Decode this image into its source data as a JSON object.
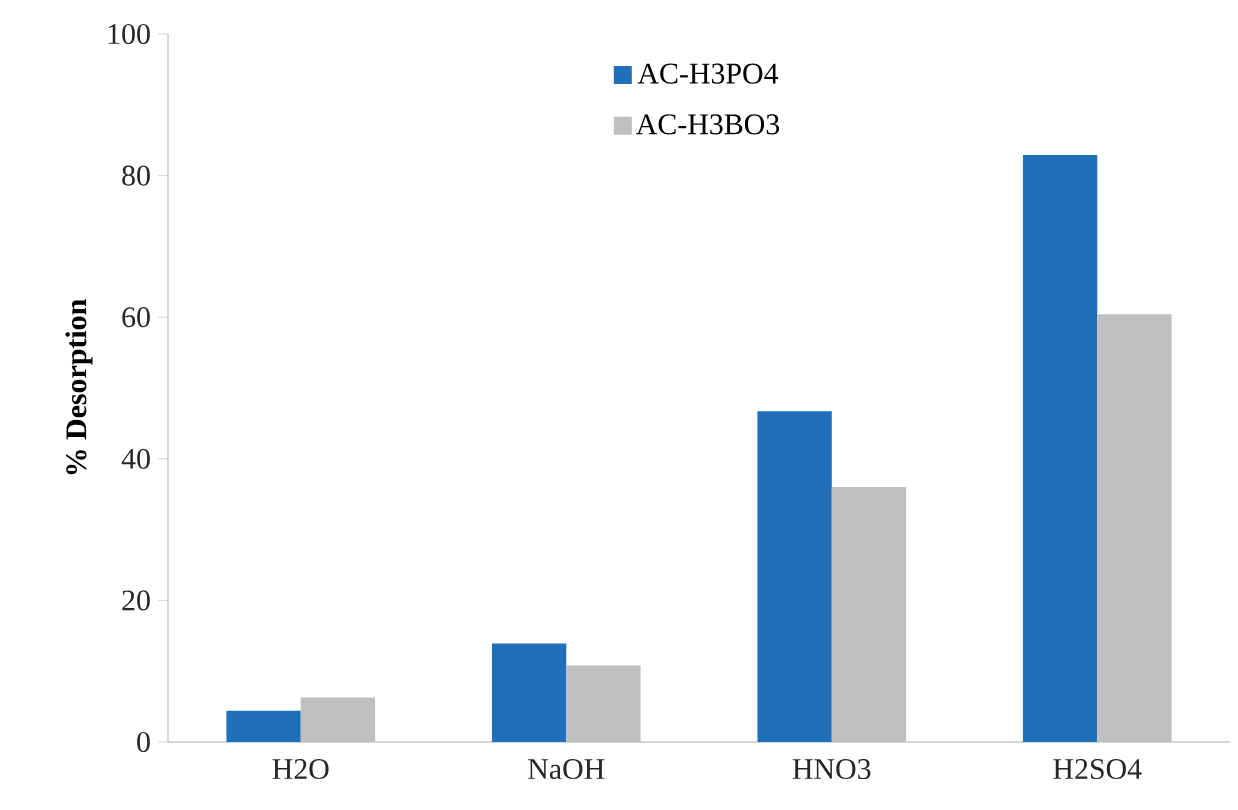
{
  "chart_data": {
    "type": "bar",
    "ylabel": "% Desorption",
    "categories": [
      "H2O",
      "NaOH",
      "HNO3",
      "H2SO4"
    ],
    "series": [
      {
        "name": "AC-H3PO4",
        "color": "#1f6fbb",
        "values": [
          4.4,
          13.9,
          46.7,
          82.9
        ]
      },
      {
        "name": "AC-H3BO3",
        "color": "#bfbfbf",
        "values": [
          6.3,
          10.8,
          36.0,
          60.4
        ]
      }
    ],
    "ylim": [
      0,
      100
    ],
    "yticks": [
      0,
      20,
      40,
      60,
      80,
      100
    ],
    "grid": false,
    "legend": "top"
  }
}
